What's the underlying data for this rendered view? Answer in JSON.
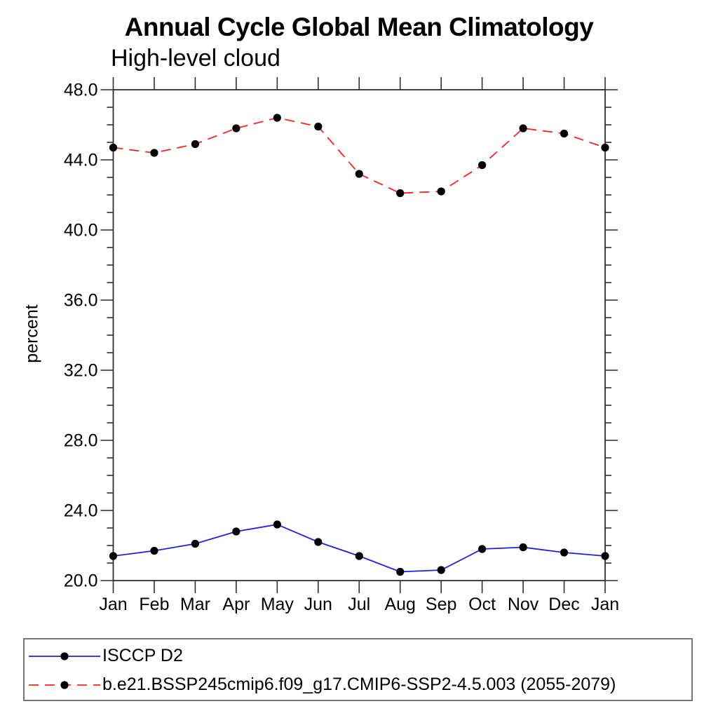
{
  "axis_color": "#2f2f2f",
  "chart_data": {
    "type": "line",
    "title": "Annual Cycle Global Mean Climatology",
    "subtitle": "High-level cloud",
    "ylabel": "percent",
    "xlabel": "",
    "categories": [
      "Jan",
      "Feb",
      "Mar",
      "Apr",
      "May",
      "Jun",
      "Jul",
      "Aug",
      "Sep",
      "Oct",
      "Nov",
      "Dec",
      "Jan"
    ],
    "ylim": [
      20.0,
      48.0
    ],
    "y_major_ticks": [
      20.0,
      24.0,
      28.0,
      32.0,
      36.0,
      40.0,
      44.0,
      48.0
    ],
    "y_minor_step": 1.0,
    "grid": false,
    "legend_position": "bottom-left-box",
    "series": [
      {
        "name": "ISCCP D2",
        "color": "#2121dd",
        "line_style": "solid",
        "marker": "filled-circle",
        "marker_color": "#000000",
        "values": [
          21.4,
          21.7,
          22.1,
          22.8,
          23.2,
          22.2,
          21.4,
          20.5,
          20.6,
          21.8,
          21.9,
          21.6,
          21.4
        ]
      },
      {
        "name": "b.e21.BSSP245cmip6.f09_g17.CMIP6-SSP2-4.5.003 (2055-2079)",
        "color": "#ff2020",
        "line_style": "dashed",
        "marker": "filled-circle",
        "marker_color": "#000000",
        "values": [
          44.7,
          44.4,
          44.9,
          45.8,
          46.4,
          45.9,
          43.2,
          42.1,
          42.2,
          43.7,
          45.8,
          45.5,
          44.7
        ]
      }
    ]
  }
}
